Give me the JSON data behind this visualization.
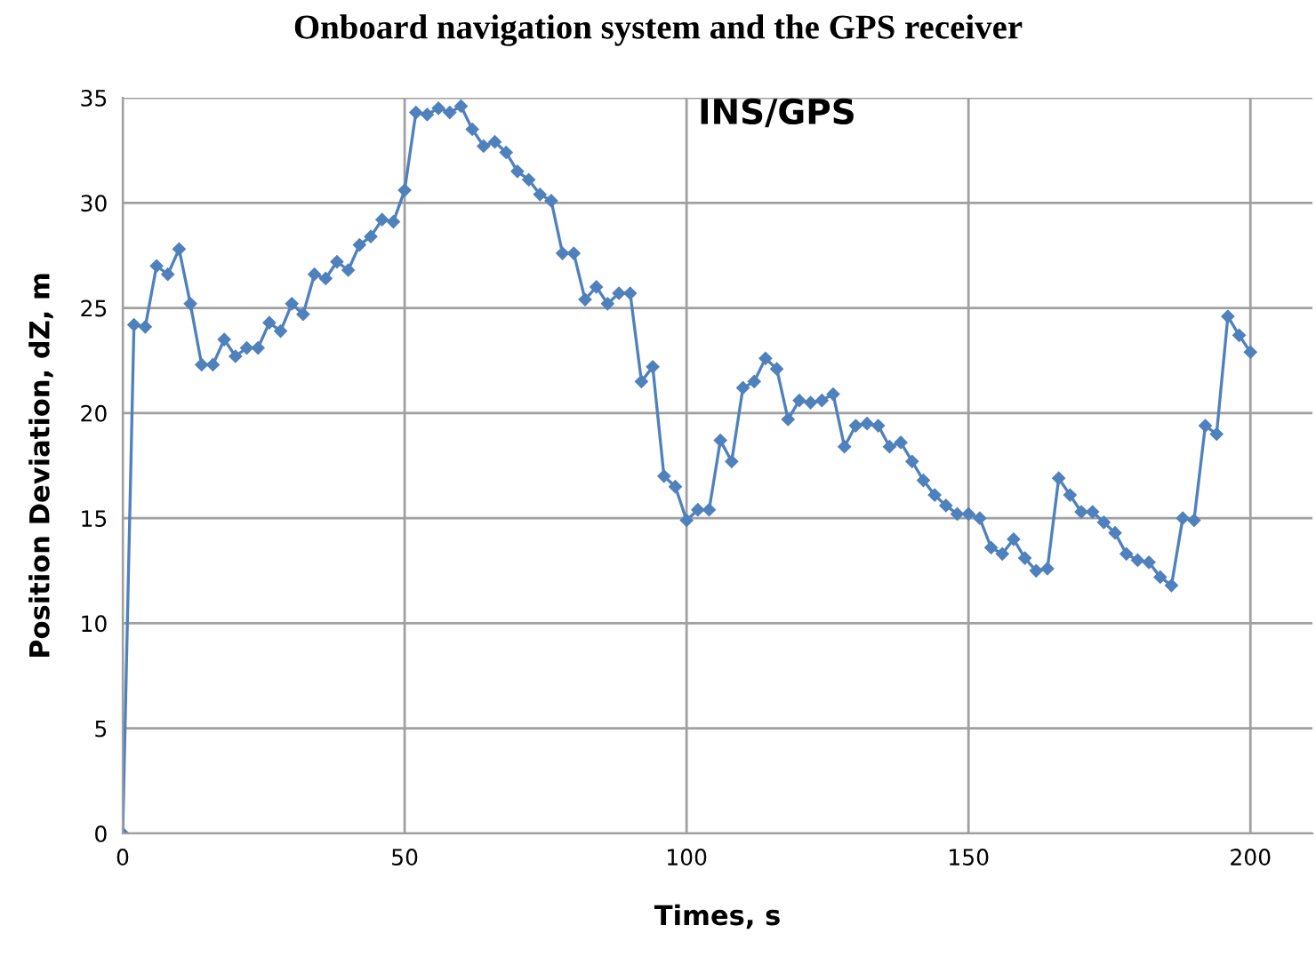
{
  "chart_data": {
    "type": "line",
    "title": "Onboard navigation system and the GPS receiver",
    "subtitle": "INS/GPS",
    "xlabel": "Times, s",
    "ylabel": "Position Deviation, dZ, m",
    "x": [
      0,
      2,
      4,
      6,
      8,
      10,
      12,
      14,
      16,
      18,
      20,
      22,
      24,
      26,
      28,
      30,
      32,
      34,
      36,
      38,
      40,
      42,
      44,
      46,
      48,
      50,
      52,
      54,
      56,
      58,
      60,
      62,
      64,
      66,
      68,
      70,
      72,
      74,
      76,
      78,
      80,
      82,
      84,
      86,
      88,
      90,
      92,
      94,
      96,
      98,
      100,
      102,
      104,
      106,
      108,
      110,
      112,
      114,
      116,
      118,
      120,
      122,
      124,
      126,
      128,
      130,
      132,
      134,
      136,
      138,
      140,
      142,
      144,
      146,
      148,
      150,
      152,
      154,
      156,
      158,
      160,
      162,
      164,
      166,
      168,
      170,
      172,
      174,
      176,
      178,
      180,
      182,
      184,
      186,
      188,
      190,
      192,
      194,
      196,
      198,
      200
    ],
    "series": [
      {
        "color": "#4f81bd",
        "values": [
          0,
          24.2,
          24.1,
          27.0,
          26.6,
          27.8,
          25.2,
          22.3,
          22.3,
          23.5,
          22.7,
          23.1,
          23.1,
          24.3,
          23.9,
          25.2,
          24.7,
          26.6,
          26.4,
          27.2,
          26.8,
          28.0,
          28.4,
          29.2,
          29.1,
          30.6,
          34.3,
          34.2,
          34.5,
          34.3,
          34.6,
          33.5,
          32.7,
          32.9,
          32.4,
          31.5,
          31.1,
          30.4,
          30.1,
          27.6,
          27.6,
          25.4,
          26.0,
          25.2,
          25.7,
          25.7,
          21.5,
          22.2,
          17.0,
          16.5,
          14.9,
          15.4,
          15.4,
          18.7,
          17.7,
          21.2,
          21.5,
          22.6,
          22.1,
          19.7,
          20.6,
          20.5,
          20.6,
          20.9,
          18.4,
          19.4,
          19.5,
          19.4,
          18.4,
          18.6,
          17.7,
          16.8,
          16.1,
          15.6,
          15.2,
          15.2,
          15.0,
          13.6,
          13.3,
          14.0,
          13.1,
          12.5,
          12.6,
          16.9,
          16.1,
          15.3,
          15.3,
          14.8,
          14.3,
          13.3,
          13.0,
          12.9,
          12.2,
          11.8,
          15.0,
          14.9,
          19.4,
          19.0,
          24.6,
          23.7,
          22.9
        ]
      }
    ],
    "xlim": [
      0,
      211
    ],
    "ylim": [
      0,
      35
    ],
    "xticks": [
      0,
      50,
      100,
      150,
      200
    ],
    "yticks": [
      0,
      5,
      10,
      15,
      20,
      25,
      30,
      35
    ],
    "grid": true,
    "marker": "diamond",
    "line_style": "solid",
    "legend": false
  }
}
